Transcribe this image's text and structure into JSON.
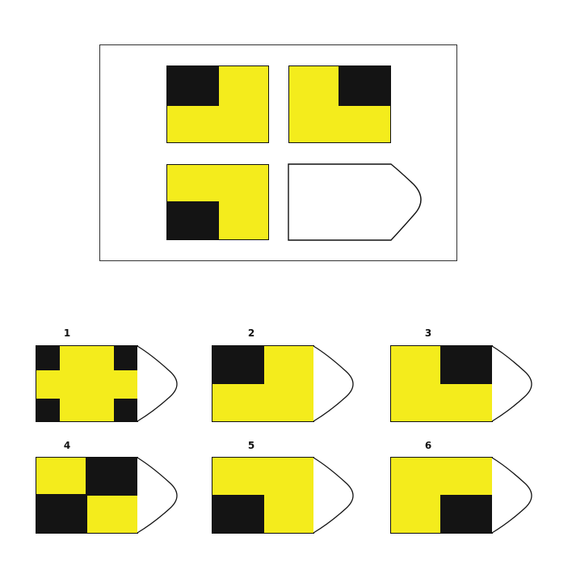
{
  "colors": {
    "yellow": "#f4ec1c",
    "black": "#141414",
    "outline": "#111111"
  },
  "options": [
    {
      "label": "1",
      "pattern": "four-corners"
    },
    {
      "label": "2",
      "pattern": "top-left"
    },
    {
      "label": "3",
      "pattern": "top-right"
    },
    {
      "label": "4",
      "pattern": "checkerboard"
    },
    {
      "label": "5",
      "pattern": "bottom-left"
    },
    {
      "label": "6",
      "pattern": "bottom-right"
    }
  ]
}
